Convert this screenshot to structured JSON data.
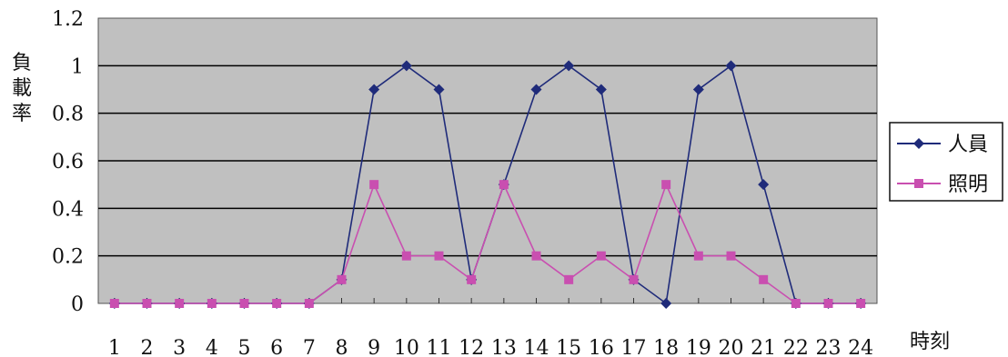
{
  "chart_data": {
    "type": "line",
    "title": "",
    "xlabel": "時刻",
    "ylabel": "負載率",
    "categories": [
      "1",
      "2",
      "3",
      "4",
      "5",
      "6",
      "7",
      "8",
      "9",
      "10",
      "11",
      "12",
      "13",
      "14",
      "15",
      "16",
      "17",
      "18",
      "19",
      "20",
      "21",
      "22",
      "23",
      "24"
    ],
    "ylim": [
      0,
      1.2
    ],
    "yticks": [
      "0",
      "0.2",
      "0.4",
      "0.6",
      "0.8",
      "1",
      "1.2"
    ],
    "grid": true,
    "legend_position": "right",
    "plot_background": "#c0c0c0",
    "series": [
      {
        "name": "人員",
        "color": "#1f2b7a",
        "marker": "diamond",
        "values": [
          0,
          0,
          0,
          0,
          0,
          0,
          0,
          0.1,
          0.9,
          1,
          0.9,
          0.1,
          0.5,
          0.9,
          1,
          0.9,
          0.1,
          0,
          0.9,
          1,
          0.5,
          0,
          0,
          0
        ]
      },
      {
        "name": "照明",
        "color": "#c94fb0",
        "marker": "square",
        "values": [
          0,
          0,
          0,
          0,
          0,
          0,
          0,
          0.1,
          0.5,
          0.2,
          0.2,
          0.1,
          0.5,
          0.2,
          0.1,
          0.2,
          0.1,
          0.5,
          0.2,
          0.2,
          0.1,
          0,
          0,
          0
        ]
      }
    ]
  }
}
